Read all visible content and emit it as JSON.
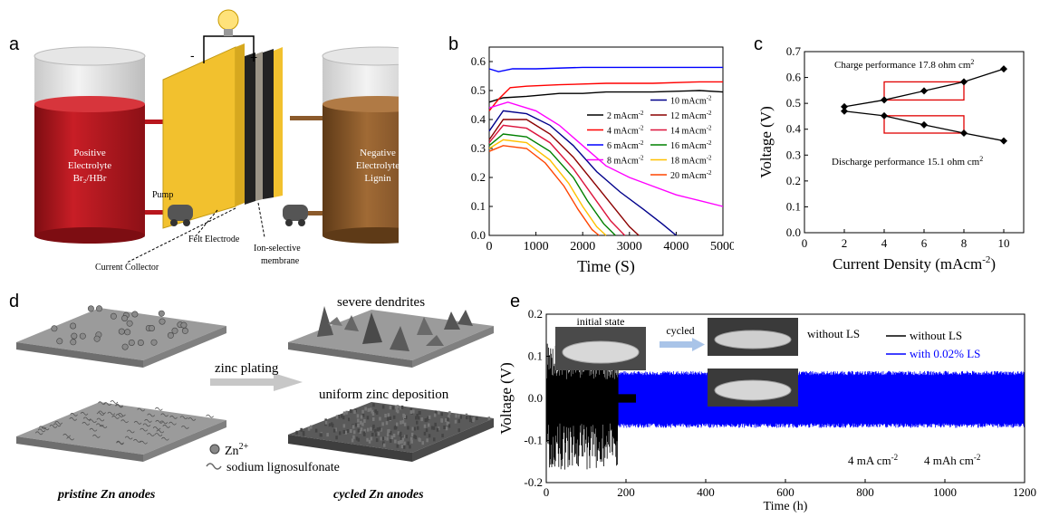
{
  "panel_labels": {
    "a": "a",
    "b": "b",
    "c": "c",
    "d": "d",
    "e": "e"
  },
  "diagram_a": {
    "positive_label_1": "Positive",
    "positive_label_2": "Electrolyte",
    "positive_label_3": "Br₂/HBr",
    "negative_label_1": "Negative",
    "negative_label_2": "Electrolyte",
    "negative_label_3": "Lignin",
    "minus": "-",
    "plus": "+",
    "pump": "Pump",
    "felt_electrode": "Felt Electrode",
    "membrane_1": "Ion-selective",
    "membrane_2": "membrane",
    "current_collector": "Current Collector",
    "colors": {
      "positive": "#b8161e",
      "negative": "#8b5a2b",
      "cell": "#f2c12e"
    }
  },
  "diagram_d": {
    "severe_dendrites": "severe dendrites",
    "zinc_plating": "zinc plating",
    "uniform_deposition": "uniform zinc deposition",
    "zn_ion": "Zn",
    "zn_ion_sup": "2+",
    "lignosulfonate": "sodium lignosulfonate",
    "pristine": "pristine Zn anodes",
    "cycled": "cycled Zn anodes"
  },
  "chart_data": [
    {
      "id": "b",
      "type": "line",
      "xlabel": "Time (S)",
      "ylabel": "",
      "xlim": [
        0,
        5000
      ],
      "ylim": [
        0,
        0.65
      ],
      "xticks": [
        0,
        1000,
        2000,
        3000,
        4000,
        5000
      ],
      "yticks": [
        0.0,
        0.1,
        0.2,
        0.3,
        0.4,
        0.5,
        0.6
      ],
      "legend_unit": "mAcm",
      "legend_sup": "-2",
      "series": [
        {
          "name": "2",
          "color": "#000000",
          "x": [
            0,
            300,
            800,
            1500,
            2000,
            2500,
            3500,
            4500,
            5000
          ],
          "y": [
            0.46,
            0.475,
            0.48,
            0.49,
            0.49,
            0.495,
            0.495,
            0.5,
            0.495
          ]
        },
        {
          "name": "4",
          "color": "#ff0000",
          "x": [
            0,
            200,
            450,
            800,
            1500,
            2500,
            3500,
            4500,
            5000
          ],
          "y": [
            0.43,
            0.47,
            0.51,
            0.515,
            0.52,
            0.525,
            0.525,
            0.53,
            0.53
          ]
        },
        {
          "name": "6",
          "color": "#0000ff",
          "x": [
            0,
            200,
            500,
            1000,
            2000,
            3000,
            4000,
            5000
          ],
          "y": [
            0.575,
            0.565,
            0.575,
            0.575,
            0.58,
            0.58,
            0.58,
            0.58
          ]
        },
        {
          "name": "8",
          "color": "#ff00ff",
          "x": [
            0,
            400,
            1000,
            1500,
            2000,
            2500,
            3000,
            3500,
            4000,
            4500,
            5000
          ],
          "y": [
            0.44,
            0.46,
            0.43,
            0.38,
            0.31,
            0.24,
            0.2,
            0.17,
            0.14,
            0.12,
            0.1
          ]
        },
        {
          "name": "10",
          "color": "#00008b",
          "x": [
            0,
            300,
            800,
            1300,
            1800,
            2300,
            2800,
            3300,
            3700,
            4000
          ],
          "y": [
            0.36,
            0.43,
            0.42,
            0.38,
            0.31,
            0.22,
            0.15,
            0.09,
            0.04,
            0.0
          ]
        },
        {
          "name": "12",
          "color": "#8b0000",
          "x": [
            0,
            300,
            800,
            1300,
            1800,
            2300,
            2700,
            3000,
            3200
          ],
          "y": [
            0.33,
            0.4,
            0.4,
            0.35,
            0.27,
            0.17,
            0.09,
            0.03,
            0.0
          ]
        },
        {
          "name": "14",
          "color": "#dc143c",
          "x": [
            0,
            300,
            800,
            1300,
            1800,
            2200,
            2600,
            2900
          ],
          "y": [
            0.32,
            0.38,
            0.37,
            0.32,
            0.23,
            0.14,
            0.05,
            0.0
          ]
        },
        {
          "name": "16",
          "color": "#008000",
          "x": [
            0,
            300,
            800,
            1300,
            1800,
            2100,
            2450,
            2700
          ],
          "y": [
            0.31,
            0.35,
            0.34,
            0.29,
            0.2,
            0.12,
            0.04,
            0.0
          ]
        },
        {
          "name": "18",
          "color": "#ffc000",
          "x": [
            0,
            300,
            800,
            1300,
            1700,
            2000,
            2300,
            2500
          ],
          "y": [
            0.3,
            0.33,
            0.32,
            0.26,
            0.18,
            0.1,
            0.03,
            0.0
          ]
        },
        {
          "name": "20",
          "color": "#ff4500",
          "x": [
            0,
            300,
            800,
            1200,
            1600,
            1900,
            2200,
            2350
          ],
          "y": [
            0.29,
            0.31,
            0.3,
            0.25,
            0.17,
            0.09,
            0.02,
            0.0
          ]
        }
      ]
    },
    {
      "id": "c",
      "type": "line",
      "xlabel": "Current Density (mAcm",
      "xlabel_sup": "-2",
      "xlabel_end": ")",
      "ylabel": "Voltage (V)",
      "xlim": [
        0,
        11
      ],
      "ylim": [
        0,
        0.7
      ],
      "xticks": [
        0,
        2,
        4,
        6,
        8,
        10
      ],
      "yticks": [
        0.0,
        0.1,
        0.2,
        0.3,
        0.4,
        0.5,
        0.6,
        0.7
      ],
      "annotation_charge": "Charge performance 17.8 ohm cm",
      "annotation_discharge": "Discharge performance 15.1 ohm cm",
      "annotation_sup": "2",
      "series": [
        {
          "name": "charge",
          "color": "#000000",
          "x": [
            2,
            4,
            6,
            8,
            10
          ],
          "y": [
            0.487,
            0.513,
            0.548,
            0.583,
            0.633
          ]
        },
        {
          "name": "discharge",
          "color": "#000000",
          "x": [
            2,
            4,
            6,
            8,
            10
          ],
          "y": [
            0.47,
            0.452,
            0.417,
            0.385,
            0.355
          ]
        }
      ],
      "guide_boxes": [
        {
          "x": [
            4,
            8
          ],
          "y": [
            0.513,
            0.583
          ]
        },
        {
          "x": [
            4,
            8
          ],
          "y": [
            0.385,
            0.452
          ]
        }
      ]
    },
    {
      "id": "e",
      "type": "line",
      "xlabel": "Time (h)",
      "ylabel": "Voltage (V)",
      "xlim": [
        0,
        1200
      ],
      "ylim": [
        -0.2,
        0.2
      ],
      "xticks": [
        0,
        200,
        400,
        600,
        800,
        1000,
        1200
      ],
      "yticks": [
        -0.2,
        -0.1,
        0.0,
        0.1,
        0.2
      ],
      "legend_placement": "top-right",
      "series": [
        {
          "name": "without LS",
          "color": "#000000",
          "x": [
            0,
            180
          ],
          "y_range": [
            -0.17,
            0.13
          ]
        },
        {
          "name": "with 0.02% LS",
          "color": "#0000ff",
          "x": [
            0,
            1200
          ],
          "y_range": [
            -0.07,
            0.065
          ]
        }
      ],
      "inset": {
        "initial_state": "initial state",
        "cycled": "cycled",
        "without_ls": "without LS",
        "with_ls": "with 0.02% LS"
      },
      "annotation_current": "4 mA cm",
      "annotation_capacity": "4 mAh cm",
      "annotation_sup": "-2"
    }
  ]
}
